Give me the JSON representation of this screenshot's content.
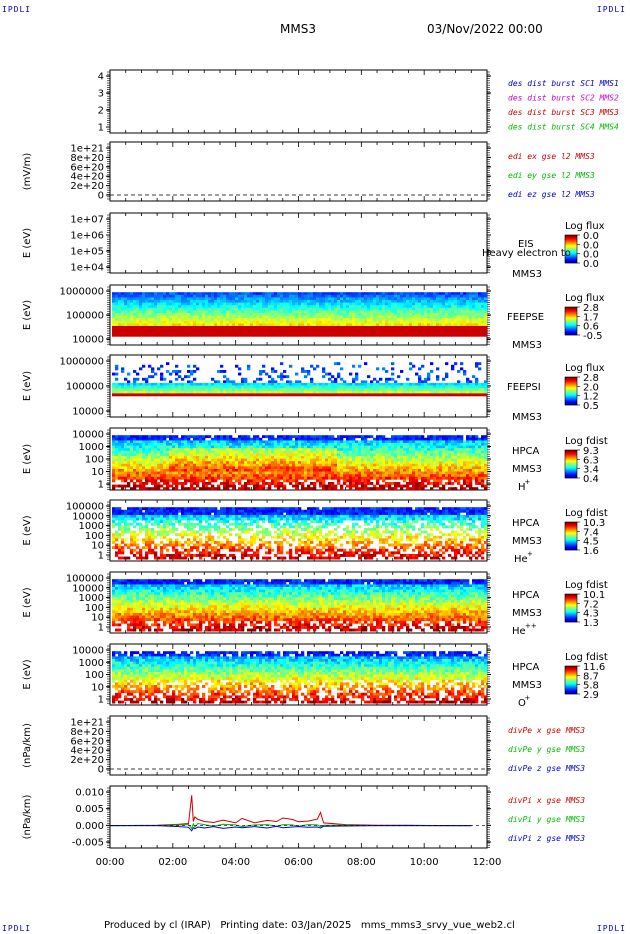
{
  "header": {
    "corner_tl": "IPDLI",
    "corner_tr": "IPDLI",
    "spacecraft": "MMS3",
    "datetime": "03/Nov/2022 00:00"
  },
  "footer": {
    "corner_bl": "IPDLI",
    "corner_br": "IPDLI",
    "text": "Produced by cl (IRAP)   Printing date: 03/Jan/2025   mms_mms3_srvy_vue_web2.cl"
  },
  "chart_data": [
    {
      "type": "line",
      "panel": "des dist burst",
      "ylabel": "",
      "ytick_labels": [
        "4",
        "3",
        "2",
        "1"
      ],
      "legend": [
        {
          "text": "des dist burst SC1 MMS1",
          "color": "#0000cc"
        },
        {
          "text": "des dist burst SC2 MMS2",
          "color": "#cc00cc"
        },
        {
          "text": "des dist burst SC3 MMS3",
          "color": "#cc0000"
        },
        {
          "text": "des dist burst SC4 MMS4",
          "color": "#00bb00"
        }
      ],
      "series": []
    },
    {
      "type": "line",
      "panel": "edi E gse",
      "ylabel": "(mV/m)",
      "ytick_labels": [
        "1e+21",
        "8e+20",
        "6e+20",
        "4e+20",
        "2e+20",
        "0"
      ],
      "legend": [
        {
          "text": "edi ex gse l2 MMS3",
          "color": "#cc0000"
        },
        {
          "text": "edi ey gse l2 MMS3",
          "color": "#00bb00"
        },
        {
          "text": "edi ez gse l2 MMS3",
          "color": "#0000cc"
        }
      ],
      "zero_line": true,
      "series": []
    },
    {
      "type": "heatmap",
      "panel": "EIS",
      "ylabel": "E (eV)",
      "ytick_labels": [
        "1e+07",
        "1e+06",
        "1e+05",
        "1e+04"
      ],
      "instrument": [
        "EIS",
        "MMS3"
      ],
      "overlay_text": "Heavy electron to",
      "colorbar": {
        "title": "Log flux",
        "ticks": [
          "0.0",
          "0.0",
          "0.0",
          "0.0"
        ]
      }
    },
    {
      "type": "heatmap",
      "panel": "FEEPSE",
      "ylabel": "E (eV)",
      "ytick_labels": [
        "1000000",
        "100000",
        "10000"
      ],
      "instrument": [
        "FEEPSE",
        "MMS3"
      ],
      "colorbar": {
        "title": "Log flux",
        "ticks": [
          "2.8",
          "1.7",
          "0.6",
          "-0.5"
        ]
      }
    },
    {
      "type": "heatmap",
      "panel": "FEEPSI",
      "ylabel": "E (eV)",
      "ytick_labels": [
        "1000000",
        "100000",
        "10000"
      ],
      "instrument": [
        "FEEPSI",
        "MMS3"
      ],
      "colorbar": {
        "title": "Log flux",
        "ticks": [
          "2.8",
          "2.0",
          "1.2",
          "0.5"
        ]
      }
    },
    {
      "type": "heatmap",
      "panel": "HPCA H+",
      "ylabel": "E (eV)",
      "ytick_labels": [
        "10000",
        "1000",
        "100",
        "10",
        "1"
      ],
      "instrument": [
        "HPCA",
        "MMS3",
        "H"
      ],
      "species_sup": "+",
      "colorbar": {
        "title": "Log fdist",
        "ticks": [
          "9.3",
          "6.3",
          "3.4",
          "0.4"
        ]
      }
    },
    {
      "type": "heatmap",
      "panel": "HPCA He+",
      "ylabel": "E (eV)",
      "ytick_labels": [
        "100000",
        "10000",
        "1000",
        "100",
        "10",
        "1"
      ],
      "instrument": [
        "HPCA",
        "MMS3",
        "He"
      ],
      "species_sup": "+",
      "colorbar": {
        "title": "Log fdist",
        "ticks": [
          "10.3",
          "7.4",
          "4.5",
          "1.6"
        ]
      }
    },
    {
      "type": "heatmap",
      "panel": "HPCA He++",
      "ylabel": "E (eV)",
      "ytick_labels": [
        "100000",
        "10000",
        "1000",
        "100",
        "10",
        "1"
      ],
      "instrument": [
        "HPCA",
        "MMS3",
        "He"
      ],
      "species_sup": "++",
      "colorbar": {
        "title": "Log fdist",
        "ticks": [
          "10.1",
          "7.2",
          "4.3",
          "1.3"
        ]
      }
    },
    {
      "type": "heatmap",
      "panel": "HPCA O+",
      "ylabel": "E (eV)",
      "ytick_labels": [
        "10000",
        "1000",
        "100",
        "10",
        "1"
      ],
      "instrument": [
        "HPCA",
        "MMS3",
        "O"
      ],
      "species_sup": "+",
      "colorbar": {
        "title": "Log fdist",
        "ticks": [
          "11.6",
          "8.7",
          "5.8",
          "2.9"
        ]
      }
    },
    {
      "type": "line",
      "panel": "divPe",
      "ylabel": "(nPa/km)",
      "ytick_labels": [
        "1e+21",
        "8e+20",
        "6e+20",
        "4e+20",
        "2e+20",
        "0"
      ],
      "legend": [
        {
          "text": "divPe x gse MMS3",
          "color": "#cc0000"
        },
        {
          "text": "divPe y gse MMS3",
          "color": "#00bb00"
        },
        {
          "text": "divPe z gse MMS3",
          "color": "#0000cc"
        }
      ],
      "zero_line": true,
      "series": []
    },
    {
      "type": "line",
      "panel": "divPi",
      "ylabel": "(nPa/km)",
      "ytick_labels": [
        "0.010",
        "0.005",
        "0.000",
        "-0.005"
      ],
      "ylim": [
        -0.0065,
        0.0115
      ],
      "legend": [
        {
          "text": "divPi x gse MMS3",
          "color": "#cc0000"
        },
        {
          "text": "divPi y gse MMS3",
          "color": "#00bb00"
        },
        {
          "text": "divPi z gse MMS3",
          "color": "#0000cc"
        }
      ],
      "x_hours": [
        0.0,
        1.5,
        2.2,
        2.5,
        2.6,
        2.65,
        2.7,
        2.8,
        3.0,
        3.3,
        3.6,
        4.0,
        4.2,
        4.6,
        5.0,
        5.3,
        5.5,
        5.8,
        6.0,
        6.3,
        6.6,
        6.7,
        6.8,
        7.5,
        8.5,
        9.5,
        10.5,
        11.5
      ],
      "series": [
        {
          "name": "divPi x gse MMS3",
          "color": "#cc0000",
          "values": [
            0.0,
            0.0001,
            0.0004,
            0.0006,
            0.0088,
            0.0012,
            0.0025,
            0.0018,
            0.0012,
            0.0009,
            0.0016,
            0.0008,
            0.0021,
            0.0008,
            0.0015,
            0.0012,
            0.0022,
            0.0018,
            0.0011,
            0.0013,
            0.0019,
            0.0038,
            0.0008,
            0.0003,
            0.0001,
            0.0001,
            0.0,
            0.0
          ]
        },
        {
          "name": "divPi y gse MMS3",
          "color": "#00bb00",
          "values": [
            0.0,
            0.0,
            0.0002,
            0.0003,
            -0.0008,
            0.0005,
            -0.0004,
            0.0006,
            0.0003,
            -0.0002,
            0.0004,
            0.0002,
            -0.0003,
            0.0002,
            0.0003,
            -0.0002,
            0.0003,
            0.0002,
            -0.0002,
            0.0003,
            0.0002,
            -0.0003,
            0.0001,
            0.0001,
            0.0,
            0.0,
            0.0,
            0.0
          ]
        },
        {
          "name": "divPi z gse MMS3",
          "color": "#0000cc",
          "values": [
            0.0,
            0.0,
            -0.0003,
            -0.0005,
            -0.0015,
            -0.0006,
            -0.0009,
            -0.0004,
            -0.0007,
            -0.0003,
            -0.0008,
            -0.0004,
            -0.0006,
            -0.0003,
            -0.0007,
            -0.0002,
            -0.0006,
            -0.0004,
            -0.0003,
            -0.0005,
            -0.0004,
            -0.0007,
            -0.0002,
            -0.0001,
            0.0,
            0.0,
            0.0,
            0.0
          ]
        }
      ]
    }
  ],
  "xaxis": {
    "tick_labels": [
      "00:00",
      "02:00",
      "04:00",
      "06:00",
      "08:00",
      "10:00",
      "12:00"
    ],
    "range_hours": [
      0,
      12
    ]
  }
}
